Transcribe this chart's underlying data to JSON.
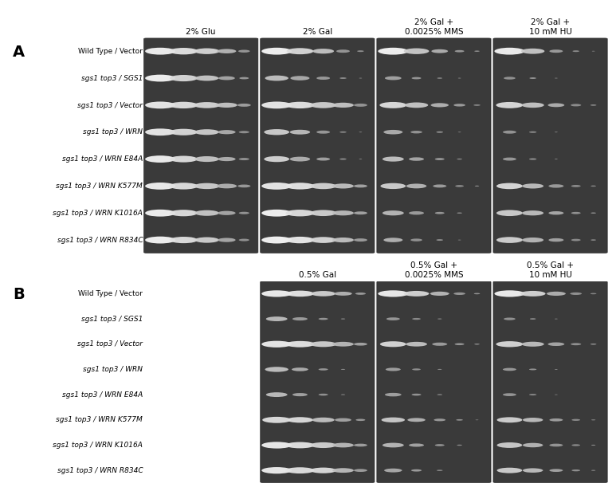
{
  "panel_A_title": "A",
  "panel_B_title": "B",
  "row_labels": [
    "Wild Type / Vector",
    "sgs1 top3 / SGS1",
    "sgs1 top3 / Vector",
    "sgs1 top3 / WRN",
    "sgs1 top3 / WRN E84A",
    "sgs1 top3 / WRN K577M",
    "sgs1 top3 / WRN K1016A",
    "sgs1 top3 / WRN R834C"
  ],
  "row_labels_italic_parts": [
    [
      false,
      false
    ],
    [
      true,
      true
    ],
    [
      true,
      false
    ],
    [
      true,
      false
    ],
    [
      true,
      false
    ],
    [
      true,
      false
    ],
    [
      true,
      false
    ],
    [
      true,
      false
    ]
  ],
  "panel_A_col_labels": [
    "2% Glu",
    "2% Gal",
    "2% Gal +\n0.0025% MMS",
    "2% Gal +\n10 mM HU"
  ],
  "panel_B_col_labels": [
    "0.5% Gal",
    "0.5% Gal +\n0.0025% MMS",
    "0.5% Gal +\n10 mM HU"
  ],
  "bg_color": "#555555",
  "plate_bg": "#383838",
  "colony_color_bright": "#e8e8e8",
  "colony_color_mid": "#c0c0c0",
  "colony_color_dim": "#909090",
  "num_dilutions": 5,
  "panel_A_data": {
    "col0_2pGlu": [
      [
        1.0,
        0.9,
        0.7,
        0.4,
        0.15
      ],
      [
        1.0,
        0.85,
        0.6,
        0.3,
        0.1
      ],
      [
        1.0,
        0.9,
        0.75,
        0.5,
        0.2
      ],
      [
        1.0,
        0.85,
        0.65,
        0.35,
        0.12
      ],
      [
        1.0,
        0.85,
        0.65,
        0.35,
        0.12
      ],
      [
        1.0,
        0.9,
        0.72,
        0.45,
        0.18
      ],
      [
        1.0,
        0.85,
        0.65,
        0.35,
        0.12
      ],
      [
        1.0,
        0.85,
        0.65,
        0.35,
        0.12
      ]
    ],
    "col1_2pGal": [
      [
        1.0,
        0.8,
        0.5,
        0.2,
        0.05
      ],
      [
        0.6,
        0.4,
        0.2,
        0.05,
        0.01
      ],
      [
        1.0,
        0.9,
        0.75,
        0.5,
        0.2
      ],
      [
        0.7,
        0.45,
        0.2,
        0.05,
        0.01
      ],
      [
        0.7,
        0.45,
        0.2,
        0.05,
        0.01
      ],
      [
        1.0,
        0.9,
        0.75,
        0.5,
        0.2
      ],
      [
        1.0,
        0.9,
        0.75,
        0.5,
        0.2
      ],
      [
        1.0,
        0.9,
        0.75,
        0.5,
        0.2
      ]
    ],
    "col2_2pGalMMS": [
      [
        1.0,
        0.7,
        0.3,
        0.1,
        0.03
      ],
      [
        0.3,
        0.1,
        0.03,
        0.01,
        0.0
      ],
      [
        0.8,
        0.6,
        0.35,
        0.15,
        0.05
      ],
      [
        0.4,
        0.15,
        0.05,
        0.01,
        0.0
      ],
      [
        0.5,
        0.25,
        0.1,
        0.03,
        0.0
      ],
      [
        0.7,
        0.45,
        0.2,
        0.08,
        0.02
      ],
      [
        0.5,
        0.25,
        0.1,
        0.03,
        0.0
      ],
      [
        0.4,
        0.15,
        0.05,
        0.01,
        0.0
      ]
    ],
    "col3_2pGalHU": [
      [
        1.0,
        0.6,
        0.2,
        0.05,
        0.01
      ],
      [
        0.15,
        0.05,
        0.01,
        0.0,
        0.0
      ],
      [
        0.8,
        0.55,
        0.3,
        0.12,
        0.04
      ],
      [
        0.2,
        0.06,
        0.01,
        0.0,
        0.0
      ],
      [
        0.2,
        0.06,
        0.01,
        0.0,
        0.0
      ],
      [
        0.75,
        0.5,
        0.25,
        0.1,
        0.03
      ],
      [
        0.75,
        0.5,
        0.25,
        0.1,
        0.03
      ],
      [
        0.75,
        0.5,
        0.25,
        0.1,
        0.03
      ]
    ]
  },
  "panel_B_data": {
    "col0_05pGal": [
      [
        1.0,
        0.85,
        0.65,
        0.35,
        0.12
      ],
      [
        0.5,
        0.25,
        0.1,
        0.02,
        0.0
      ],
      [
        1.0,
        0.9,
        0.75,
        0.5,
        0.2
      ],
      [
        0.6,
        0.3,
        0.1,
        0.02,
        0.0
      ],
      [
        0.5,
        0.25,
        0.1,
        0.02,
        0.0
      ],
      [
        0.9,
        0.75,
        0.55,
        0.3,
        0.1
      ],
      [
        1.0,
        0.9,
        0.75,
        0.5,
        0.2
      ],
      [
        1.0,
        0.9,
        0.75,
        0.5,
        0.2
      ]
    ],
    "col1_05pGalMMS": [
      [
        1.0,
        0.7,
        0.4,
        0.15,
        0.04
      ],
      [
        0.2,
        0.08,
        0.02,
        0.0,
        0.0
      ],
      [
        0.75,
        0.5,
        0.25,
        0.1,
        0.03
      ],
      [
        0.25,
        0.08,
        0.02,
        0.0,
        0.0
      ],
      [
        0.3,
        0.1,
        0.03,
        0.0,
        0.0
      ],
      [
        0.6,
        0.35,
        0.15,
        0.05,
        0.01
      ],
      [
        0.5,
        0.25,
        0.1,
        0.03,
        0.0
      ],
      [
        0.35,
        0.12,
        0.04,
        0.0,
        0.0
      ]
    ],
    "col2_05pGalHU": [
      [
        1.0,
        0.7,
        0.4,
        0.15,
        0.04
      ],
      [
        0.15,
        0.04,
        0.01,
        0.0,
        0.0
      ],
      [
        0.8,
        0.55,
        0.3,
        0.12,
        0.04
      ],
      [
        0.2,
        0.06,
        0.01,
        0.0,
        0.0
      ],
      [
        0.2,
        0.06,
        0.01,
        0.0,
        0.0
      ],
      [
        0.7,
        0.45,
        0.2,
        0.08,
        0.02
      ],
      [
        0.7,
        0.45,
        0.2,
        0.08,
        0.02
      ],
      [
        0.7,
        0.45,
        0.2,
        0.08,
        0.02
      ]
    ]
  },
  "fig_width": 7.69,
  "fig_height": 5.76,
  "label_fontsize": 6.5,
  "col_label_fontsize": 7.5,
  "panel_label_fontsize": 14
}
